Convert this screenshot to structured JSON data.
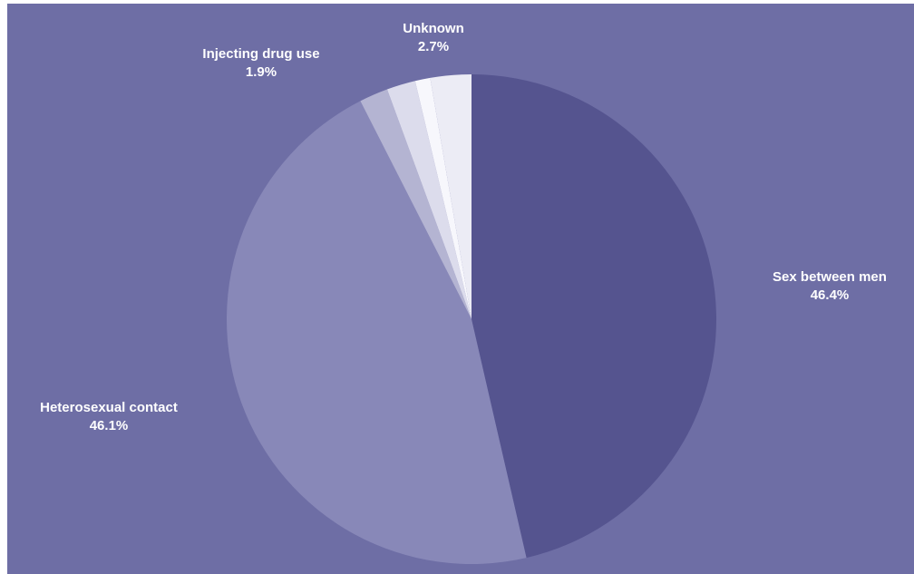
{
  "chart_data": {
    "type": "pie",
    "start_angle_deg": 0,
    "direction": "clockwise",
    "slices": [
      {
        "label": "Sex between men",
        "value": 46.4,
        "value_label": "46.4%",
        "color": "#55548f"
      },
      {
        "label": "Heterosexual contact",
        "value": 46.1,
        "value_label": "46.1%",
        "color": "#8888b8"
      },
      {
        "label": "Injecting drug use",
        "value": 1.9,
        "value_label": "1.9%",
        "color": "#b4b4d2"
      },
      {
        "label": "",
        "value": 1.9,
        "value_label": "",
        "color": "#dcdcec"
      },
      {
        "label": "",
        "value": 1.0,
        "value_label": "",
        "color": "#f7f7fc"
      },
      {
        "label": "Unknown",
        "value": 2.7,
        "value_label": "2.7%",
        "color": "#ececf5"
      }
    ]
  },
  "colors": {
    "background": "#6e6ea5",
    "label_text": "#ffffff"
  }
}
